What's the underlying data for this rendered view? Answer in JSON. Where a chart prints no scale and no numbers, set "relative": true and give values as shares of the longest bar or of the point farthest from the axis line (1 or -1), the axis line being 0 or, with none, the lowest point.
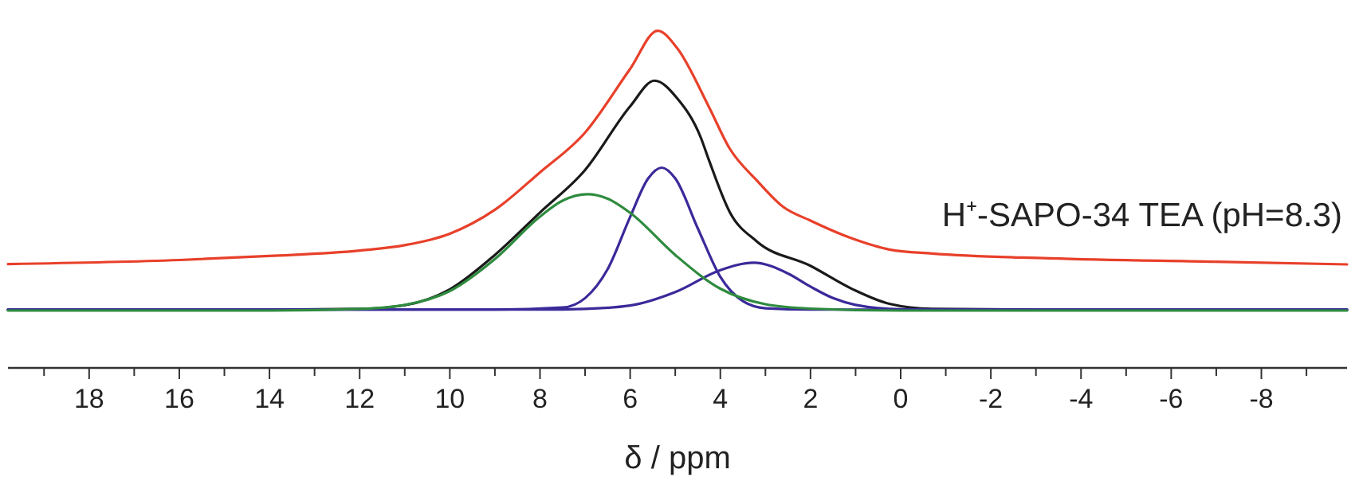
{
  "chart_data": {
    "type": "line",
    "relative": true,
    "xlabel": "δ / ppm",
    "xlim": [
      19.8,
      -9.9
    ],
    "xticks": [
      {
        "value": 19,
        "label": null
      },
      18,
      {
        "value": 17,
        "label": null
      },
      16,
      {
        "value": 15,
        "label": null
      },
      14,
      {
        "value": 13,
        "label": null
      },
      12,
      {
        "value": 11,
        "label": null
      },
      10,
      {
        "value": 9,
        "label": null
      },
      8,
      {
        "value": 7,
        "label": null
      },
      6,
      {
        "value": 5,
        "label": null
      },
      4,
      {
        "value": 3,
        "label": null
      },
      2,
      {
        "value": 1,
        "label": null
      },
      0,
      {
        "value": -1,
        "label": null
      },
      -2,
      {
        "value": -3,
        "label": null
      },
      -4,
      {
        "value": -5,
        "label": null
      },
      -6,
      {
        "value": -7,
        "label": null
      },
      -8,
      {
        "value": -9,
        "label": null
      }
    ],
    "annotations": [
      "H⁺-SAPO-34 TEA (pH=8.3)"
    ],
    "series": [
      {
        "color": "#e8402a",
        "x": [
          19.8,
          16,
          14,
          12,
          11,
          10,
          9,
          8,
          7,
          6,
          5.39,
          4.96,
          4.26,
          3.79,
          3.19,
          2.6,
          2.02,
          1.06,
          0.25,
          -0.7,
          -3.3,
          -6.9,
          -9.9
        ],
        "values": [
          0.308,
          0.32,
          0.332,
          0.348,
          0.364,
          0.398,
          0.469,
          0.58,
          0.698,
          0.887,
          1,
          0.949,
          0.776,
          0.65,
          0.556,
          0.477,
          0.438,
          0.383,
          0.351,
          0.339,
          0.325,
          0.315,
          0.307
        ]
      },
      {
        "color": "#1a1a1a",
        "x": [
          19.8,
          14,
          12,
          11,
          10,
          9,
          8,
          7,
          6,
          5.46,
          4.96,
          4.43,
          4.26,
          3.79,
          3.19,
          2.02,
          1.06,
          0.25,
          -0.7,
          -3,
          -9.9
        ],
        "values": [
          0.173,
          0.173,
          0.175,
          0.186,
          0.233,
          0.335,
          0.461,
          0.587,
          0.776,
          0.852,
          0.8,
          0.682,
          0.619,
          0.462,
          0.375,
          0.304,
          0.233,
          0.19,
          0.175,
          0.173,
          0.173
        ]
      },
      {
        "color": "#3a2a9a",
        "x": [
          19.8,
          9,
          7.5,
          7,
          6.5,
          6,
          5.6,
          5.3,
          5,
          4.5,
          4,
          3.5,
          3,
          2,
          -9.9
        ],
        "values": [
          0.173,
          0.173,
          0.179,
          0.207,
          0.293,
          0.448,
          0.562,
          0.594,
          0.562,
          0.414,
          0.27,
          0.198,
          0.177,
          0.173,
          0.173
        ]
      },
      {
        "color": "#3a2a9a",
        "x": [
          19.8,
          10,
          8,
          7,
          6,
          5,
          4,
          3.26,
          2.5,
          2,
          1.5,
          1,
          0,
          -2,
          -9.9
        ],
        "values": [
          0.173,
          0.173,
          0.173,
          0.175,
          0.185,
          0.225,
          0.29,
          0.312,
          0.28,
          0.241,
          0.207,
          0.187,
          0.174,
          0.173,
          0.173
        ]
      },
      {
        "color": "#2e8b3e",
        "x": [
          19.8,
          14,
          12,
          11,
          10,
          9,
          8,
          7.5,
          6.95,
          6.5,
          6,
          5,
          4,
          3,
          2,
          0,
          -9.9
        ],
        "values": [
          0.17,
          0.17,
          0.175,
          0.187,
          0.228,
          0.323,
          0.449,
          0.496,
          0.515,
          0.502,
          0.46,
          0.335,
          0.235,
          0.189,
          0.176,
          0.17,
          0.17
        ]
      }
    ]
  }
}
